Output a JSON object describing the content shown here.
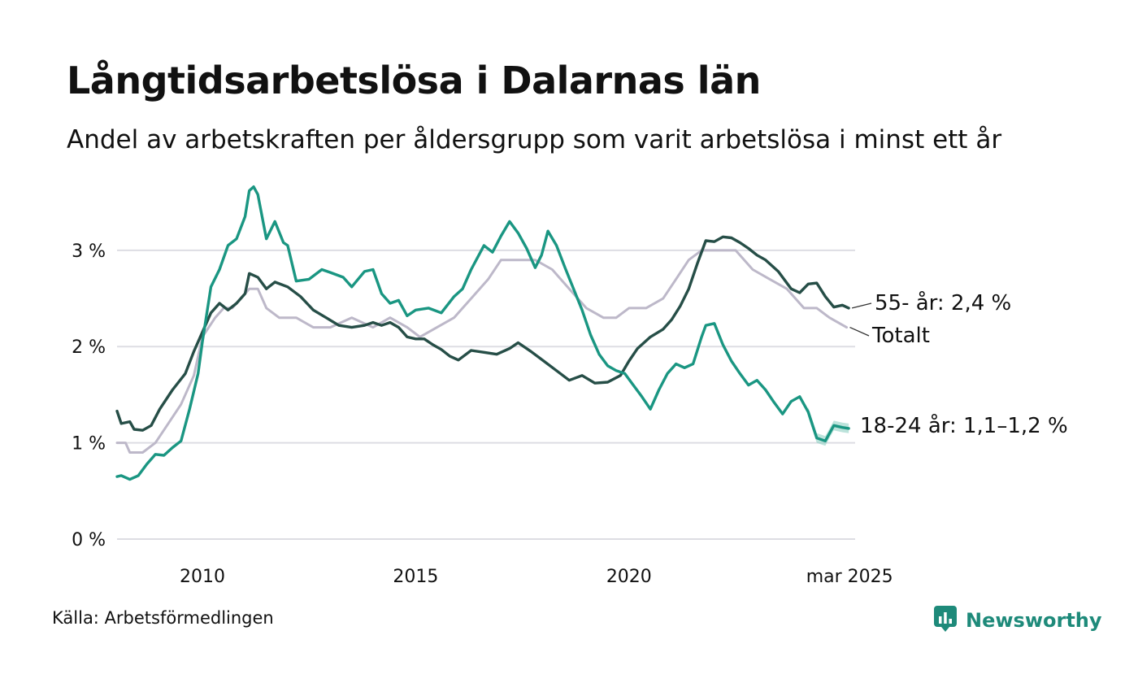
{
  "header": {
    "title": "Långtidsarbetslösa i Dalarnas län",
    "subtitle": "Andel av arbetskraften per åldersgrupp som varit arbetslösa i minst ett år"
  },
  "footer": {
    "source": "Källa: Arbetsförmedlingen",
    "brand": "Newsworthy",
    "brand_icon": "bar-chart-icon"
  },
  "colors": {
    "age_55": "#264e47",
    "age_18_24": "#1a9682",
    "age_18_24_band": "#8fd1c3",
    "total": "#bdb8c9",
    "grid": "#dddde3",
    "brand": "#1e8a7a"
  },
  "chart_data": {
    "type": "line",
    "x_ticks": [
      {
        "value": 2010,
        "label": "2010"
      },
      {
        "value": 2015,
        "label": "2015"
      },
      {
        "value": 2020,
        "label": "2020"
      },
      {
        "value": 2025.17,
        "label": "mar 2025"
      }
    ],
    "y_ticks": [
      {
        "value": 0,
        "label": "0 %"
      },
      {
        "value": 1,
        "label": "1 %"
      },
      {
        "value": 2,
        "label": "2 %"
      },
      {
        "value": 3,
        "label": "3 %"
      }
    ],
    "xlim": [
      2008.0,
      2025.3
    ],
    "ylim": [
      0,
      3.7
    ],
    "grid": true,
    "series": [
      {
        "key": "total",
        "label": "Totalt",
        "x": [
          2008.0,
          2008.2,
          2008.3,
          2008.6,
          2008.9,
          2009.2,
          2009.5,
          2009.8,
          2010.0,
          2010.3,
          2010.5,
          2010.7,
          2010.9,
          2011.1,
          2011.3,
          2011.5,
          2011.8,
          2012.2,
          2012.6,
          2013.0,
          2013.5,
          2014.0,
          2014.4,
          2014.8,
          2015.1,
          2015.5,
          2015.9,
          2016.3,
          2016.7,
          2017.0,
          2017.4,
          2017.8,
          2018.2,
          2018.6,
          2019.0,
          2019.4,
          2019.7,
          2020.0,
          2020.4,
          2020.8,
          2021.1,
          2021.4,
          2021.7,
          2022.1,
          2022.5,
          2022.9,
          2023.3,
          2023.7,
          2024.1,
          2024.4,
          2024.7,
          2025.1
        ],
        "y": [
          1.0,
          1.0,
          0.9,
          0.9,
          1.0,
          1.2,
          1.4,
          1.7,
          2.1,
          2.3,
          2.4,
          2.4,
          2.5,
          2.6,
          2.6,
          2.4,
          2.3,
          2.3,
          2.2,
          2.2,
          2.3,
          2.2,
          2.3,
          2.2,
          2.1,
          2.2,
          2.3,
          2.5,
          2.7,
          2.9,
          2.9,
          2.9,
          2.8,
          2.6,
          2.4,
          2.3,
          2.3,
          2.4,
          2.4,
          2.5,
          2.7,
          2.9,
          3.0,
          3.0,
          3.0,
          2.8,
          2.7,
          2.6,
          2.4,
          2.4,
          2.3,
          2.2
        ],
        "end_label": "Totalt"
      },
      {
        "key": "age_55",
        "label": "55- år",
        "x": [
          2008.0,
          2008.1,
          2008.3,
          2008.4,
          2008.6,
          2008.8,
          2009.0,
          2009.3,
          2009.6,
          2009.8,
          2010.0,
          2010.2,
          2010.4,
          2010.6,
          2010.8,
          2011.0,
          2011.1,
          2011.3,
          2011.5,
          2011.7,
          2012.0,
          2012.3,
          2012.6,
          2012.9,
          2013.2,
          2013.5,
          2013.8,
          2014.0,
          2014.2,
          2014.4,
          2014.6,
          2014.8,
          2015.0,
          2015.2,
          2015.4,
          2015.6,
          2015.8,
          2016.0,
          2016.3,
          2016.6,
          2016.9,
          2017.2,
          2017.4,
          2017.7,
          2018.0,
          2018.3,
          2018.6,
          2018.9,
          2019.2,
          2019.5,
          2019.8,
          2020.0,
          2020.2,
          2020.5,
          2020.8,
          2021.0,
          2021.2,
          2021.4,
          2021.6,
          2021.8,
          2022.0,
          2022.2,
          2022.4,
          2022.6,
          2022.8,
          2023.0,
          2023.2,
          2023.5,
          2023.8,
          2024.0,
          2024.2,
          2024.4,
          2024.6,
          2024.8,
          2025.0,
          2025.15
        ],
        "y": [
          1.33,
          1.2,
          1.22,
          1.14,
          1.13,
          1.18,
          1.35,
          1.55,
          1.72,
          1.95,
          2.15,
          2.35,
          2.45,
          2.38,
          2.45,
          2.55,
          2.76,
          2.72,
          2.6,
          2.67,
          2.62,
          2.52,
          2.38,
          2.3,
          2.22,
          2.2,
          2.22,
          2.25,
          2.22,
          2.25,
          2.2,
          2.1,
          2.08,
          2.08,
          2.02,
          1.97,
          1.9,
          1.86,
          1.96,
          1.94,
          1.92,
          1.98,
          2.04,
          1.95,
          1.85,
          1.75,
          1.65,
          1.7,
          1.62,
          1.63,
          1.7,
          1.85,
          1.98,
          2.1,
          2.18,
          2.28,
          2.42,
          2.6,
          2.86,
          3.1,
          3.09,
          3.14,
          3.13,
          3.08,
          3.02,
          2.95,
          2.9,
          2.78,
          2.6,
          2.56,
          2.65,
          2.66,
          2.52,
          2.41,
          2.43,
          2.4
        ],
        "end_label": "55- år: 2,4 %"
      },
      {
        "key": "age_18_24",
        "label": "18-24 år",
        "x": [
          2008.0,
          2008.1,
          2008.3,
          2008.5,
          2008.7,
          2008.9,
          2009.1,
          2009.3,
          2009.5,
          2009.7,
          2009.9,
          2010.0,
          2010.2,
          2010.4,
          2010.6,
          2010.8,
          2011.0,
          2011.1,
          2011.2,
          2011.3,
          2011.5,
          2011.7,
          2011.9,
          2012.0,
          2012.2,
          2012.5,
          2012.8,
          2013.0,
          2013.3,
          2013.5,
          2013.8,
          2014.0,
          2014.2,
          2014.4,
          2014.6,
          2014.8,
          2015.0,
          2015.3,
          2015.6,
          2015.9,
          2016.1,
          2016.3,
          2016.6,
          2016.8,
          2017.0,
          2017.2,
          2017.4,
          2017.6,
          2017.8,
          2017.95,
          2018.1,
          2018.3,
          2018.5,
          2018.7,
          2018.9,
          2019.1,
          2019.3,
          2019.5,
          2019.7,
          2019.9,
          2020.1,
          2020.3,
          2020.5,
          2020.7,
          2020.9,
          2021.1,
          2021.3,
          2021.5,
          2021.7,
          2021.8,
          2022.0,
          2022.2,
          2022.4,
          2022.6,
          2022.8,
          2023.0,
          2023.2,
          2023.4,
          2023.6,
          2023.8,
          2024.0,
          2024.2,
          2024.4,
          2024.6,
          2024.8,
          2025.0,
          2025.15
        ],
        "y": [
          0.65,
          0.66,
          0.62,
          0.66,
          0.78,
          0.88,
          0.87,
          0.95,
          1.02,
          1.35,
          1.72,
          2.05,
          2.62,
          2.8,
          3.05,
          3.12,
          3.35,
          3.62,
          3.66,
          3.58,
          3.12,
          3.3,
          3.08,
          3.05,
          2.68,
          2.7,
          2.8,
          2.77,
          2.72,
          2.62,
          2.78,
          2.8,
          2.55,
          2.45,
          2.48,
          2.32,
          2.38,
          2.4,
          2.35,
          2.52,
          2.6,
          2.8,
          3.05,
          2.98,
          3.15,
          3.3,
          3.18,
          3.02,
          2.82,
          2.95,
          3.2,
          3.05,
          2.82,
          2.6,
          2.38,
          2.12,
          1.92,
          1.8,
          1.75,
          1.72,
          1.6,
          1.48,
          1.35,
          1.55,
          1.72,
          1.82,
          1.78,
          1.82,
          2.1,
          2.22,
          2.24,
          2.02,
          1.85,
          1.72,
          1.6,
          1.65,
          1.55,
          1.42,
          1.3,
          1.43,
          1.48,
          1.32,
          1.05,
          1.02,
          1.18,
          1.16,
          1.15
        ],
        "band_from": 2024.2,
        "band_halfwidth": 0.05,
        "end_label": "18-24 år: 1,1–1,2 %"
      }
    ]
  }
}
